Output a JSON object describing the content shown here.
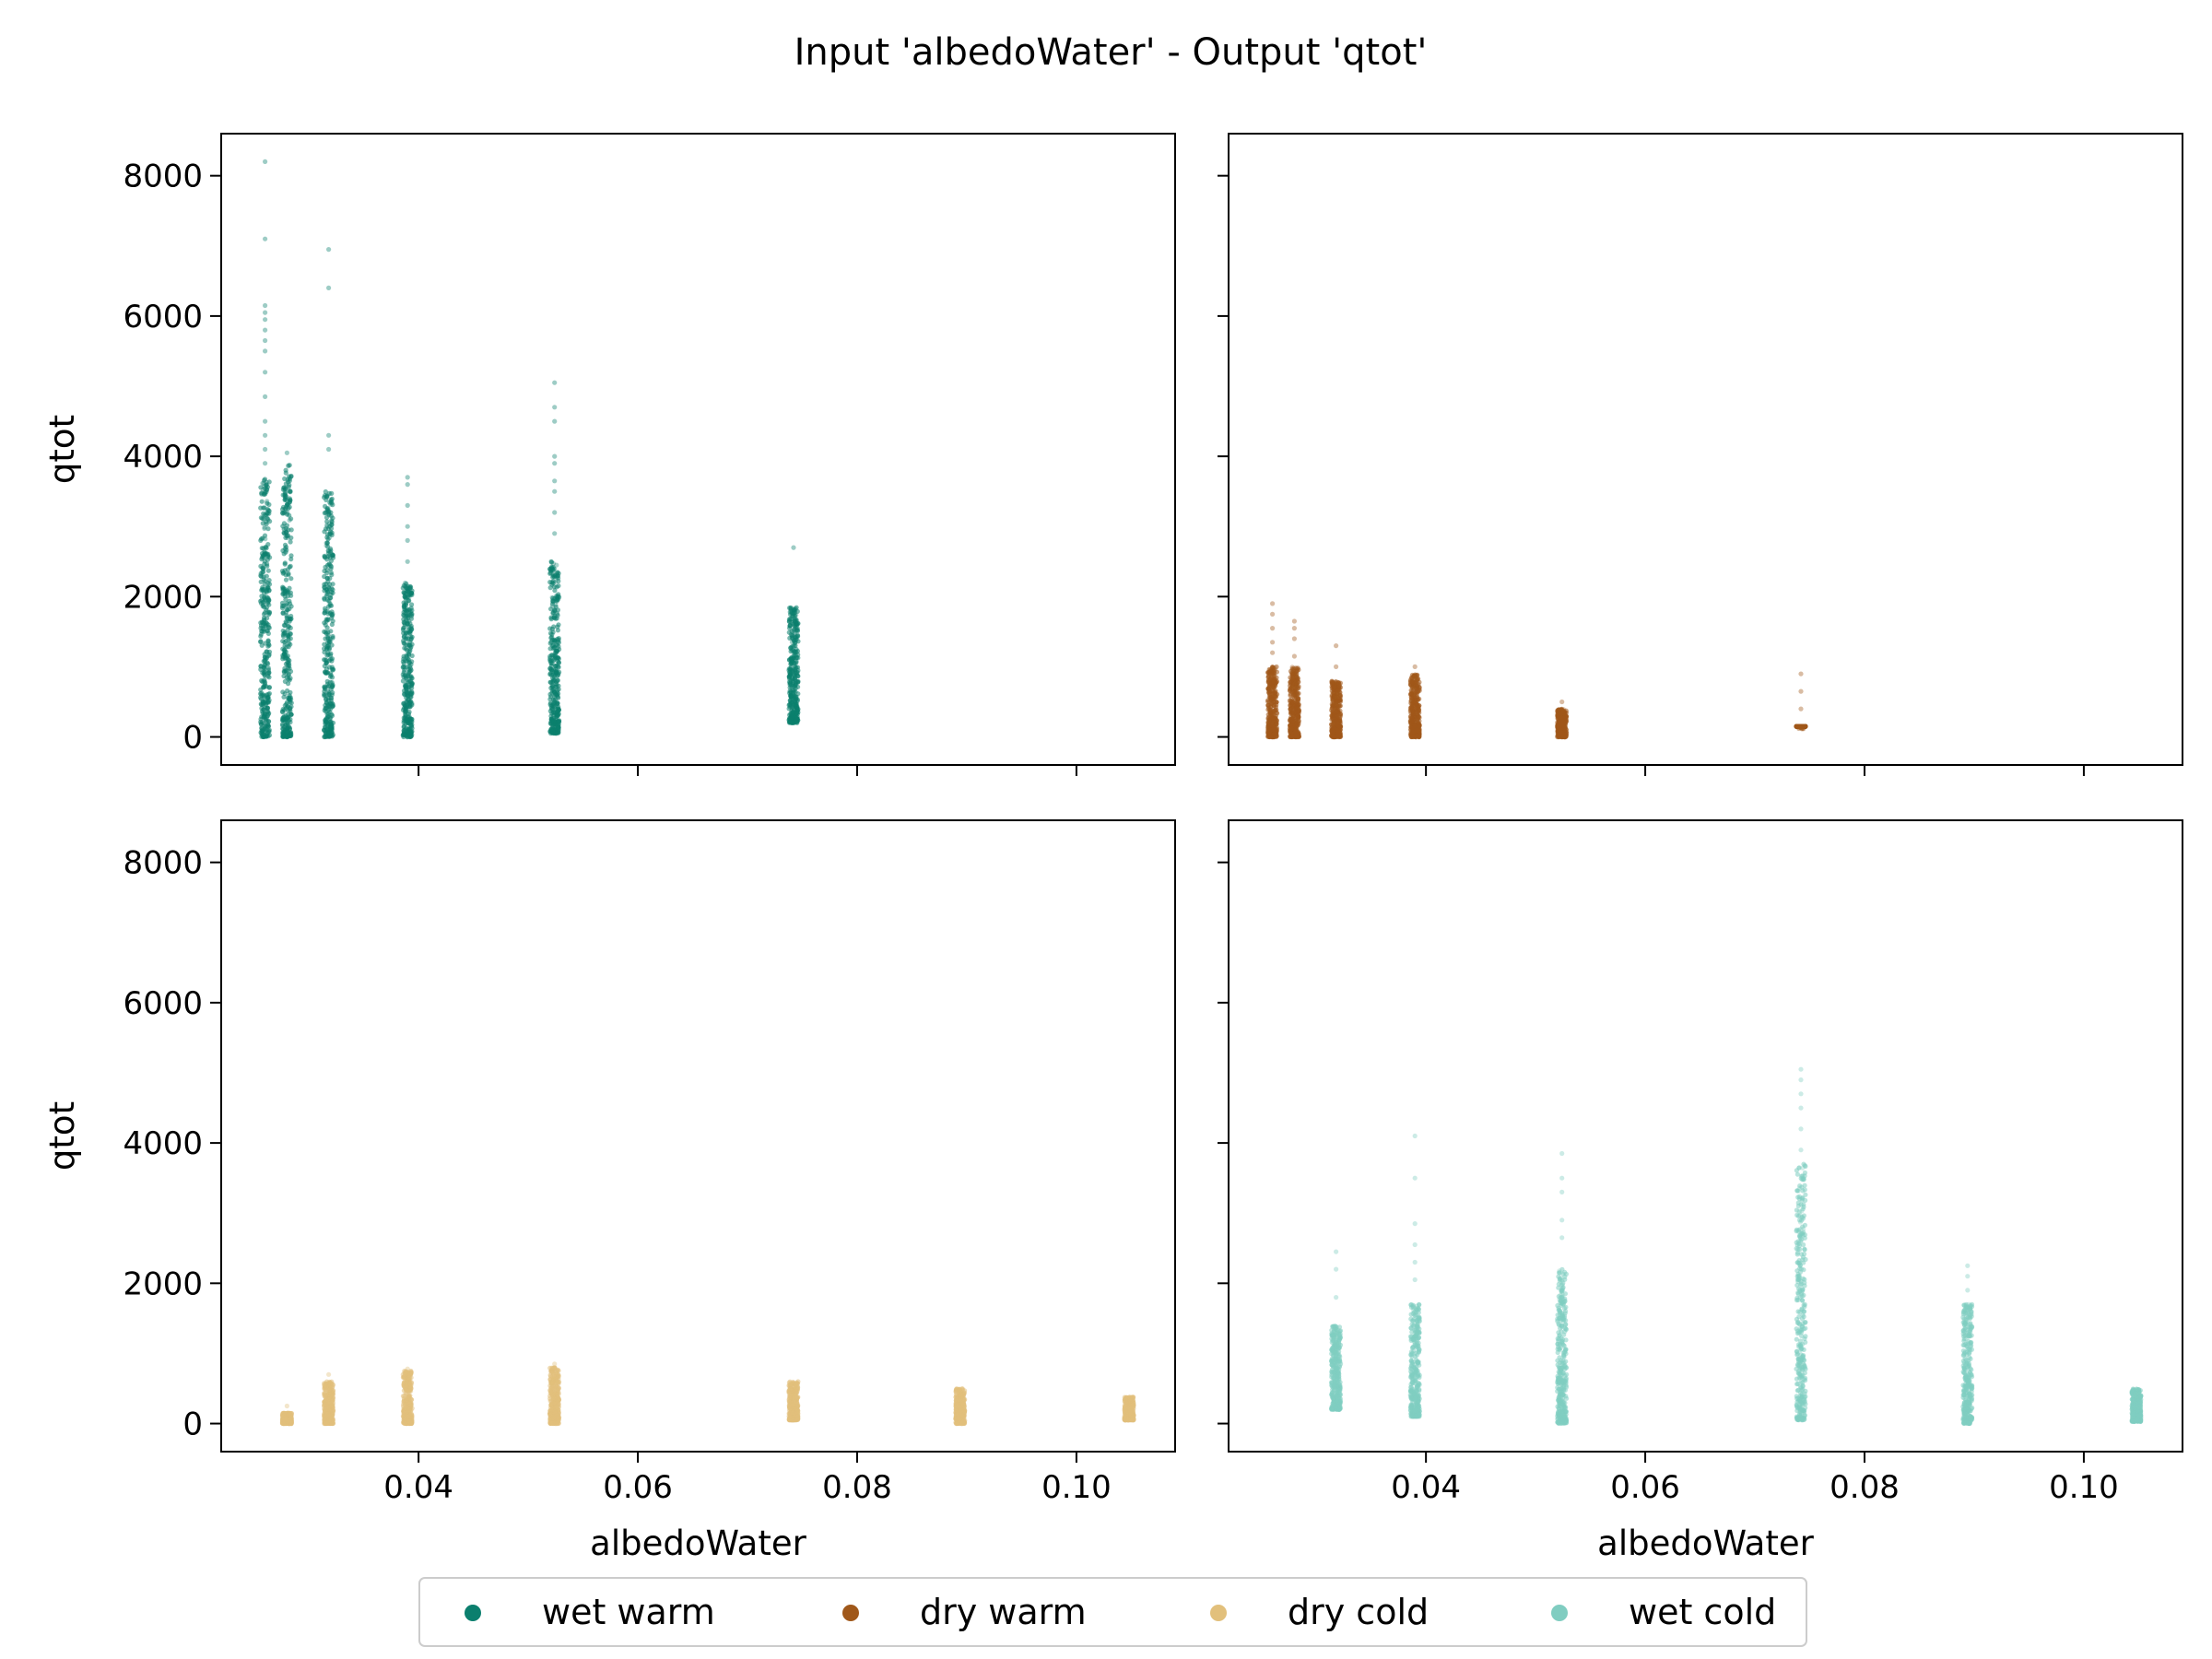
{
  "title": "Input 'albedoWater' - Output 'qtot'",
  "colors": {
    "wet_warm": "#0b7f6e",
    "dry_warm": "#a0581a",
    "dry_cold": "#e2c07c",
    "wet_cold": "#80cdc1"
  },
  "chart_data": {
    "type": "scatter",
    "layout": "2x2 subplots, shared x and y axes",
    "xlabel": "albedoWater",
    "ylabel": "qtot",
    "xlim": [
      0.022,
      0.109
    ],
    "ylim": [
      -400,
      8600
    ],
    "xticks": [
      0.04,
      0.06,
      0.08,
      0.1
    ],
    "xtick_labels": [
      "0.04",
      "0.06",
      "0.08",
      "0.10"
    ],
    "yticks": [
      0,
      2000,
      4000,
      6000,
      8000
    ],
    "ytick_labels": [
      "0",
      "2000",
      "4000",
      "6000",
      "8000"
    ],
    "legend": {
      "placement": "bottom-center",
      "entries": [
        "wet warm",
        "dry warm",
        "dry cold",
        "wet cold"
      ]
    },
    "panels": [
      {
        "position": "top-left",
        "series": "wet warm",
        "color_key": "wet_warm",
        "x_values": [
          0.026,
          0.028,
          0.0318,
          0.039,
          0.0524,
          0.0742
        ],
        "columns": [
          {
            "x": 0.026,
            "dense_min": 0,
            "dense_max": 3700,
            "outliers": [
              3900,
              4100,
              4300,
              4500,
              4850,
              5200,
              5500,
              5650,
              5800,
              5950,
              6050,
              6150,
              7100,
              8200
            ]
          },
          {
            "x": 0.028,
            "dense_min": 0,
            "dense_max": 3900,
            "outliers": [
              4050
            ]
          },
          {
            "x": 0.0318,
            "dense_min": 0,
            "dense_max": 3500,
            "outliers": [
              4100,
              4300,
              6400,
              6950
            ]
          },
          {
            "x": 0.039,
            "dense_min": 0,
            "dense_max": 2200,
            "outliers": [
              2500,
              2800,
              3000,
              3300,
              3600,
              3700
            ]
          },
          {
            "x": 0.0524,
            "dense_min": 50,
            "dense_max": 2500,
            "outliers": [
              2900,
              3200,
              3500,
              3650,
              3900,
              4000,
              4500,
              4700,
              5050
            ]
          },
          {
            "x": 0.0742,
            "dense_min": 200,
            "dense_max": 1850,
            "outliers": [
              2700
            ]
          }
        ]
      },
      {
        "position": "top-right",
        "series": "dry warm",
        "color_key": "dry_warm",
        "x_values": [
          0.026,
          0.028,
          0.0318,
          0.039,
          0.0524,
          0.0742
        ],
        "columns": [
          {
            "x": 0.026,
            "dense_min": 0,
            "dense_max": 1000,
            "outliers": [
              1200,
              1350,
              1550,
              1750,
              1900
            ]
          },
          {
            "x": 0.028,
            "dense_min": 0,
            "dense_max": 1000,
            "outliers": [
              1150,
              1400,
              1550,
              1650
            ]
          },
          {
            "x": 0.0318,
            "dense_min": 0,
            "dense_max": 800,
            "outliers": [
              1000,
              1300
            ]
          },
          {
            "x": 0.039,
            "dense_min": 0,
            "dense_max": 900,
            "outliers": [
              1000
            ]
          },
          {
            "x": 0.0524,
            "dense_min": 0,
            "dense_max": 400,
            "outliers": [
              500
            ]
          },
          {
            "x": 0.0742,
            "dense_min": 150,
            "dense_max": 150,
            "outliers": [
              400,
              650,
              900
            ]
          }
        ]
      },
      {
        "position": "bottom-left",
        "series": "dry cold",
        "color_key": "dry_cold",
        "x_values": [
          0.028,
          0.0318,
          0.039,
          0.0524,
          0.0742,
          0.0894,
          0.1048
        ],
        "columns": [
          {
            "x": 0.028,
            "dense_min": 0,
            "dense_max": 150,
            "outliers": [
              250
            ]
          },
          {
            "x": 0.0318,
            "dense_min": 0,
            "dense_max": 600,
            "outliers": [
              700
            ]
          },
          {
            "x": 0.039,
            "dense_min": 0,
            "dense_max": 750,
            "outliers": [
              780
            ]
          },
          {
            "x": 0.0524,
            "dense_min": 0,
            "dense_max": 800,
            "outliers": [
              850
            ]
          },
          {
            "x": 0.0742,
            "dense_min": 50,
            "dense_max": 600,
            "outliers": []
          },
          {
            "x": 0.0894,
            "dense_min": 0,
            "dense_max": 500,
            "outliers": []
          },
          {
            "x": 0.1048,
            "dense_min": 50,
            "dense_max": 380,
            "outliers": []
          }
        ]
      },
      {
        "position": "bottom-right",
        "series": "wet cold",
        "color_key": "wet_cold",
        "x_values": [
          0.0318,
          0.039,
          0.0524,
          0.0742,
          0.0894,
          0.1048
        ],
        "columns": [
          {
            "x": 0.0318,
            "dense_min": 200,
            "dense_max": 1400,
            "outliers": [
              1800,
              2200,
              2450
            ]
          },
          {
            "x": 0.039,
            "dense_min": 100,
            "dense_max": 1700,
            "outliers": [
              2050,
              2300,
              2550,
              2850,
              3500,
              4100
            ]
          },
          {
            "x": 0.0524,
            "dense_min": 0,
            "dense_max": 2200,
            "outliers": [
              2650,
              2900,
              3300,
              3500,
              3850
            ]
          },
          {
            "x": 0.0742,
            "dense_min": 50,
            "dense_max": 3700,
            "outliers": [
              3900,
              4200,
              4500,
              4700,
              4900,
              5050
            ]
          },
          {
            "x": 0.0894,
            "dense_min": 0,
            "dense_max": 1700,
            "outliers": [
              1900,
              2100,
              2250
            ]
          },
          {
            "x": 0.1048,
            "dense_min": 30,
            "dense_max": 500,
            "outliers": []
          }
        ]
      }
    ]
  }
}
